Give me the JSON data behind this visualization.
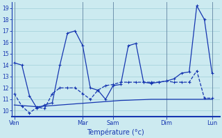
{
  "xlabel": "Température (°c)",
  "background_color": "#cceaf0",
  "grid_color": "#a8d4dc",
  "line_color": "#1535b0",
  "ylim": [
    9.5,
    19.5
  ],
  "yticks": [
    10,
    11,
    12,
    13,
    14,
    15,
    16,
    17,
    18,
    19
  ],
  "x_tick_labels": [
    "Ven",
    "Mar",
    "Sam",
    "Dim",
    "Lun"
  ],
  "x_tick_positions": [
    0,
    9,
    13,
    20,
    26
  ],
  "x_vline_positions": [
    0,
    9,
    13,
    20,
    26
  ],
  "xlim": [
    -0.3,
    27
  ],
  "num_points": 27,
  "line1": [
    14.2,
    14.0,
    11.3,
    10.2,
    10.5,
    10.7,
    14.0,
    16.8,
    17.0,
    15.7,
    12.0,
    11.8,
    11.0,
    12.2,
    12.3,
    15.7,
    15.9,
    12.5,
    12.4,
    12.5,
    12.6,
    12.8,
    13.3,
    13.4,
    19.2,
    18.0,
    13.3
  ],
  "line2": [
    11.5,
    10.4,
    9.8,
    10.3,
    10.2,
    11.5,
    12.0,
    12.0,
    12.0,
    11.5,
    11.0,
    11.8,
    12.2,
    12.3,
    12.5,
    12.5,
    12.5,
    12.5,
    12.5,
    12.5,
    12.6,
    12.5,
    12.5,
    12.5,
    13.5,
    11.1,
    11.1
  ],
  "line3": [
    10.5,
    10.45,
    10.4,
    10.35,
    10.4,
    10.45,
    10.5,
    10.55,
    10.6,
    10.65,
    10.7,
    10.75,
    10.8,
    10.85,
    10.9,
    10.92,
    10.95,
    10.97,
    11.0,
    11.0,
    11.0,
    11.0,
    11.0,
    11.0,
    11.0,
    11.0,
    11.0
  ]
}
